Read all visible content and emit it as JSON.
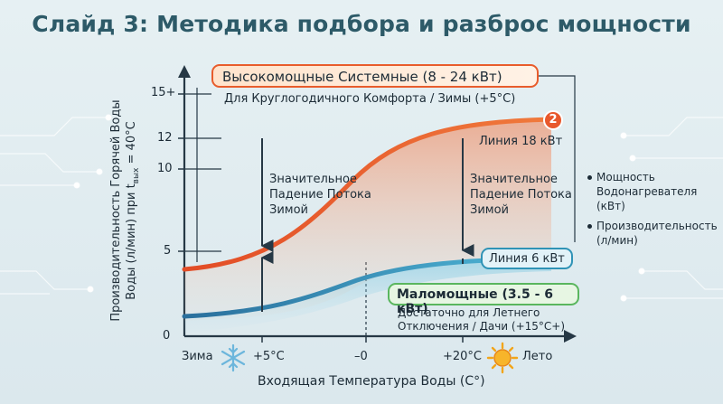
{
  "title": "Слайд 3: Методика подбора и разброс мощности",
  "y_axis": {
    "label_line1": "Производительность Горячей Воды",
    "label_line2_pre": "Воды (л/мин) при t",
    "label_line2_sub": "вых",
    "label_line2_post": " = 40°C",
    "ticks": [
      "15+",
      "12",
      "10",
      "5",
      "0"
    ]
  },
  "x_axis": {
    "label": "Входящая Температура Воды (C°)",
    "ticks": [
      "Зима",
      "+5°C",
      "–0",
      "+20°C",
      "Лето"
    ]
  },
  "top_group": {
    "title": "Высокомощные Системные (8 - 24 кВт)",
    "subtitle": "Для Круглогодичного Комфорта / Зимы (+5°C)",
    "badge": "2",
    "line_label": "Линия 18 кВт"
  },
  "bottom_group": {
    "title": "Маломощные (3.5 - 6 кВт)",
    "subtitle_line1": "Достаточно для Летнего",
    "subtitle_line2": "Отключения / Дачи (+15°C+)",
    "line_label": "Линия 6 кВт"
  },
  "annotation": {
    "line1": "Значительное",
    "line2": "Падение Потока",
    "line3": "Зимой"
  },
  "legend": {
    "item1_line1": "Мощность",
    "item1_line2": "Водонагревателя",
    "item1_line3": "(кВт)",
    "item2_line1": "Производительность",
    "item2_line2": "(л/мин)"
  },
  "icons": [
    "snowflake-icon",
    "sun-icon",
    "circuit-decoration"
  ],
  "colors": {
    "high_power_curve": "#e8582c",
    "low_power_curve": "#2f86ad",
    "title": "#2d5a68",
    "low_box_border": "#5ab65e"
  }
}
